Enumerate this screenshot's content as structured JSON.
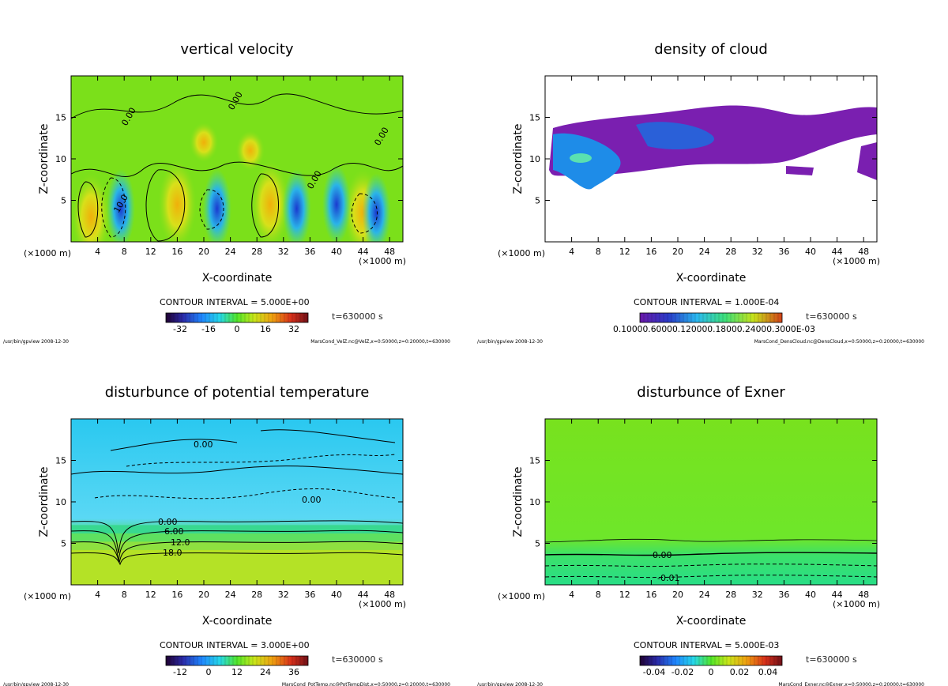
{
  "chart_data": [
    {
      "type": "heatmap",
      "title": "vertical velocity",
      "xlabel": "X-coordinate",
      "ylabel": "Z-coordinate",
      "x_unit": "(×1000 m)",
      "xlim": [
        0,
        50
      ],
      "ylim": [
        0,
        20
      ],
      "x_ticks": [
        4,
        8,
        12,
        16,
        20,
        24,
        28,
        32,
        36,
        40,
        44,
        48
      ],
      "y_ticks": [
        5,
        10,
        15
      ],
      "contour_interval": "CONTOUR INTERVAL = 5.000E+00",
      "time": "t=630000 s",
      "colorbar_range": [
        -40,
        40
      ],
      "colorbar_ticks": [
        "-32",
        "-16",
        "0",
        "16",
        "32"
      ],
      "contour_labels": [
        "0.00",
        "0.00",
        "0.00",
        "0.00",
        "10.0"
      ],
      "footer_left": "/usr/bin/gpview  2008-12-30",
      "footer_right": "MarsCond_VelZ.nc@VelZ,x=0:50000,z=0:20000,t=630000"
    },
    {
      "type": "heatmap",
      "title": "density of cloud",
      "xlabel": "X-coordinate",
      "ylabel": "Z-coordinate",
      "x_unit": "(×1000 m)",
      "xlim": [
        0,
        50
      ],
      "ylim": [
        0,
        20
      ],
      "x_ticks": [
        4,
        8,
        12,
        16,
        20,
        24,
        28,
        32,
        36,
        40,
        44,
        48
      ],
      "y_ticks": [
        5,
        10,
        15
      ],
      "contour_interval": "CONTOUR INTERVAL = 1.000E-04",
      "time": "t=630000 s",
      "colorbar_tick_text": "0.10000.60000.120000.18000.24000.3000E-03",
      "footer_left": "/usr/bin/gpview  2008-12-30",
      "footer_right": "MarsCond_DensCloud.nc@DensCloud,x=0:50000,z=0:20000,t=630000"
    },
    {
      "type": "heatmap",
      "title": "disturbunce of potential temperature",
      "xlabel": "X-coordinate",
      "ylabel": "Z-coordinate",
      "x_unit": "(×1000 m)",
      "xlim": [
        0,
        50
      ],
      "ylim": [
        0,
        20
      ],
      "x_ticks": [
        4,
        8,
        12,
        16,
        20,
        24,
        28,
        32,
        36,
        40,
        44,
        48
      ],
      "y_ticks": [
        5,
        10,
        15
      ],
      "contour_interval": "CONTOUR INTERVAL = 3.000E+00",
      "time": "t=630000 s",
      "colorbar_range": [
        -18,
        42
      ],
      "colorbar_ticks": [
        "-12",
        "0",
        "12",
        "24",
        "36"
      ],
      "contour_labels": [
        "0.00",
        "0.00",
        "0.00",
        "6.00",
        "12.0",
        "18.0"
      ],
      "footer_left": "/usr/bin/gpview  2008-12-30",
      "footer_right": "MarsCond_PotTemp.nc@PotTempDist,x=0:50000,z=0:20000,t=630000"
    },
    {
      "type": "heatmap",
      "title": "disturbunce of Exner",
      "xlabel": "X-coordinate",
      "ylabel": "Z-coordinate",
      "x_unit": "(×1000 m)",
      "xlim": [
        0,
        50
      ],
      "ylim": [
        0,
        20
      ],
      "x_ticks": [
        4,
        8,
        12,
        16,
        20,
        24,
        28,
        32,
        36,
        40,
        44,
        48
      ],
      "y_ticks": [
        5,
        10,
        15
      ],
      "contour_interval": "CONTOUR INTERVAL = 5.000E-03",
      "time": "t=630000 s",
      "colorbar_range": [
        -0.05,
        0.05
      ],
      "colorbar_ticks": [
        "-0.04",
        "-0.02",
        "0",
        "0.02",
        "0.04"
      ],
      "contour_labels": [
        "0.00",
        "-0.01"
      ],
      "footer_left": "/usr/bin/gpview  2008-12-30",
      "footer_right": "MarsCond_Exner.nc@Exner,x=0:50000,z=0:20000,t=630000"
    }
  ],
  "colors": {
    "field_green": "#7be01a",
    "cloud_purple": "#7a1fb0",
    "pt_cyan": "#3fd2f0",
    "pt_yellow": "#c8e41c",
    "exner_green": "#6ee61e",
    "exner_teal": "#2fe07a"
  }
}
